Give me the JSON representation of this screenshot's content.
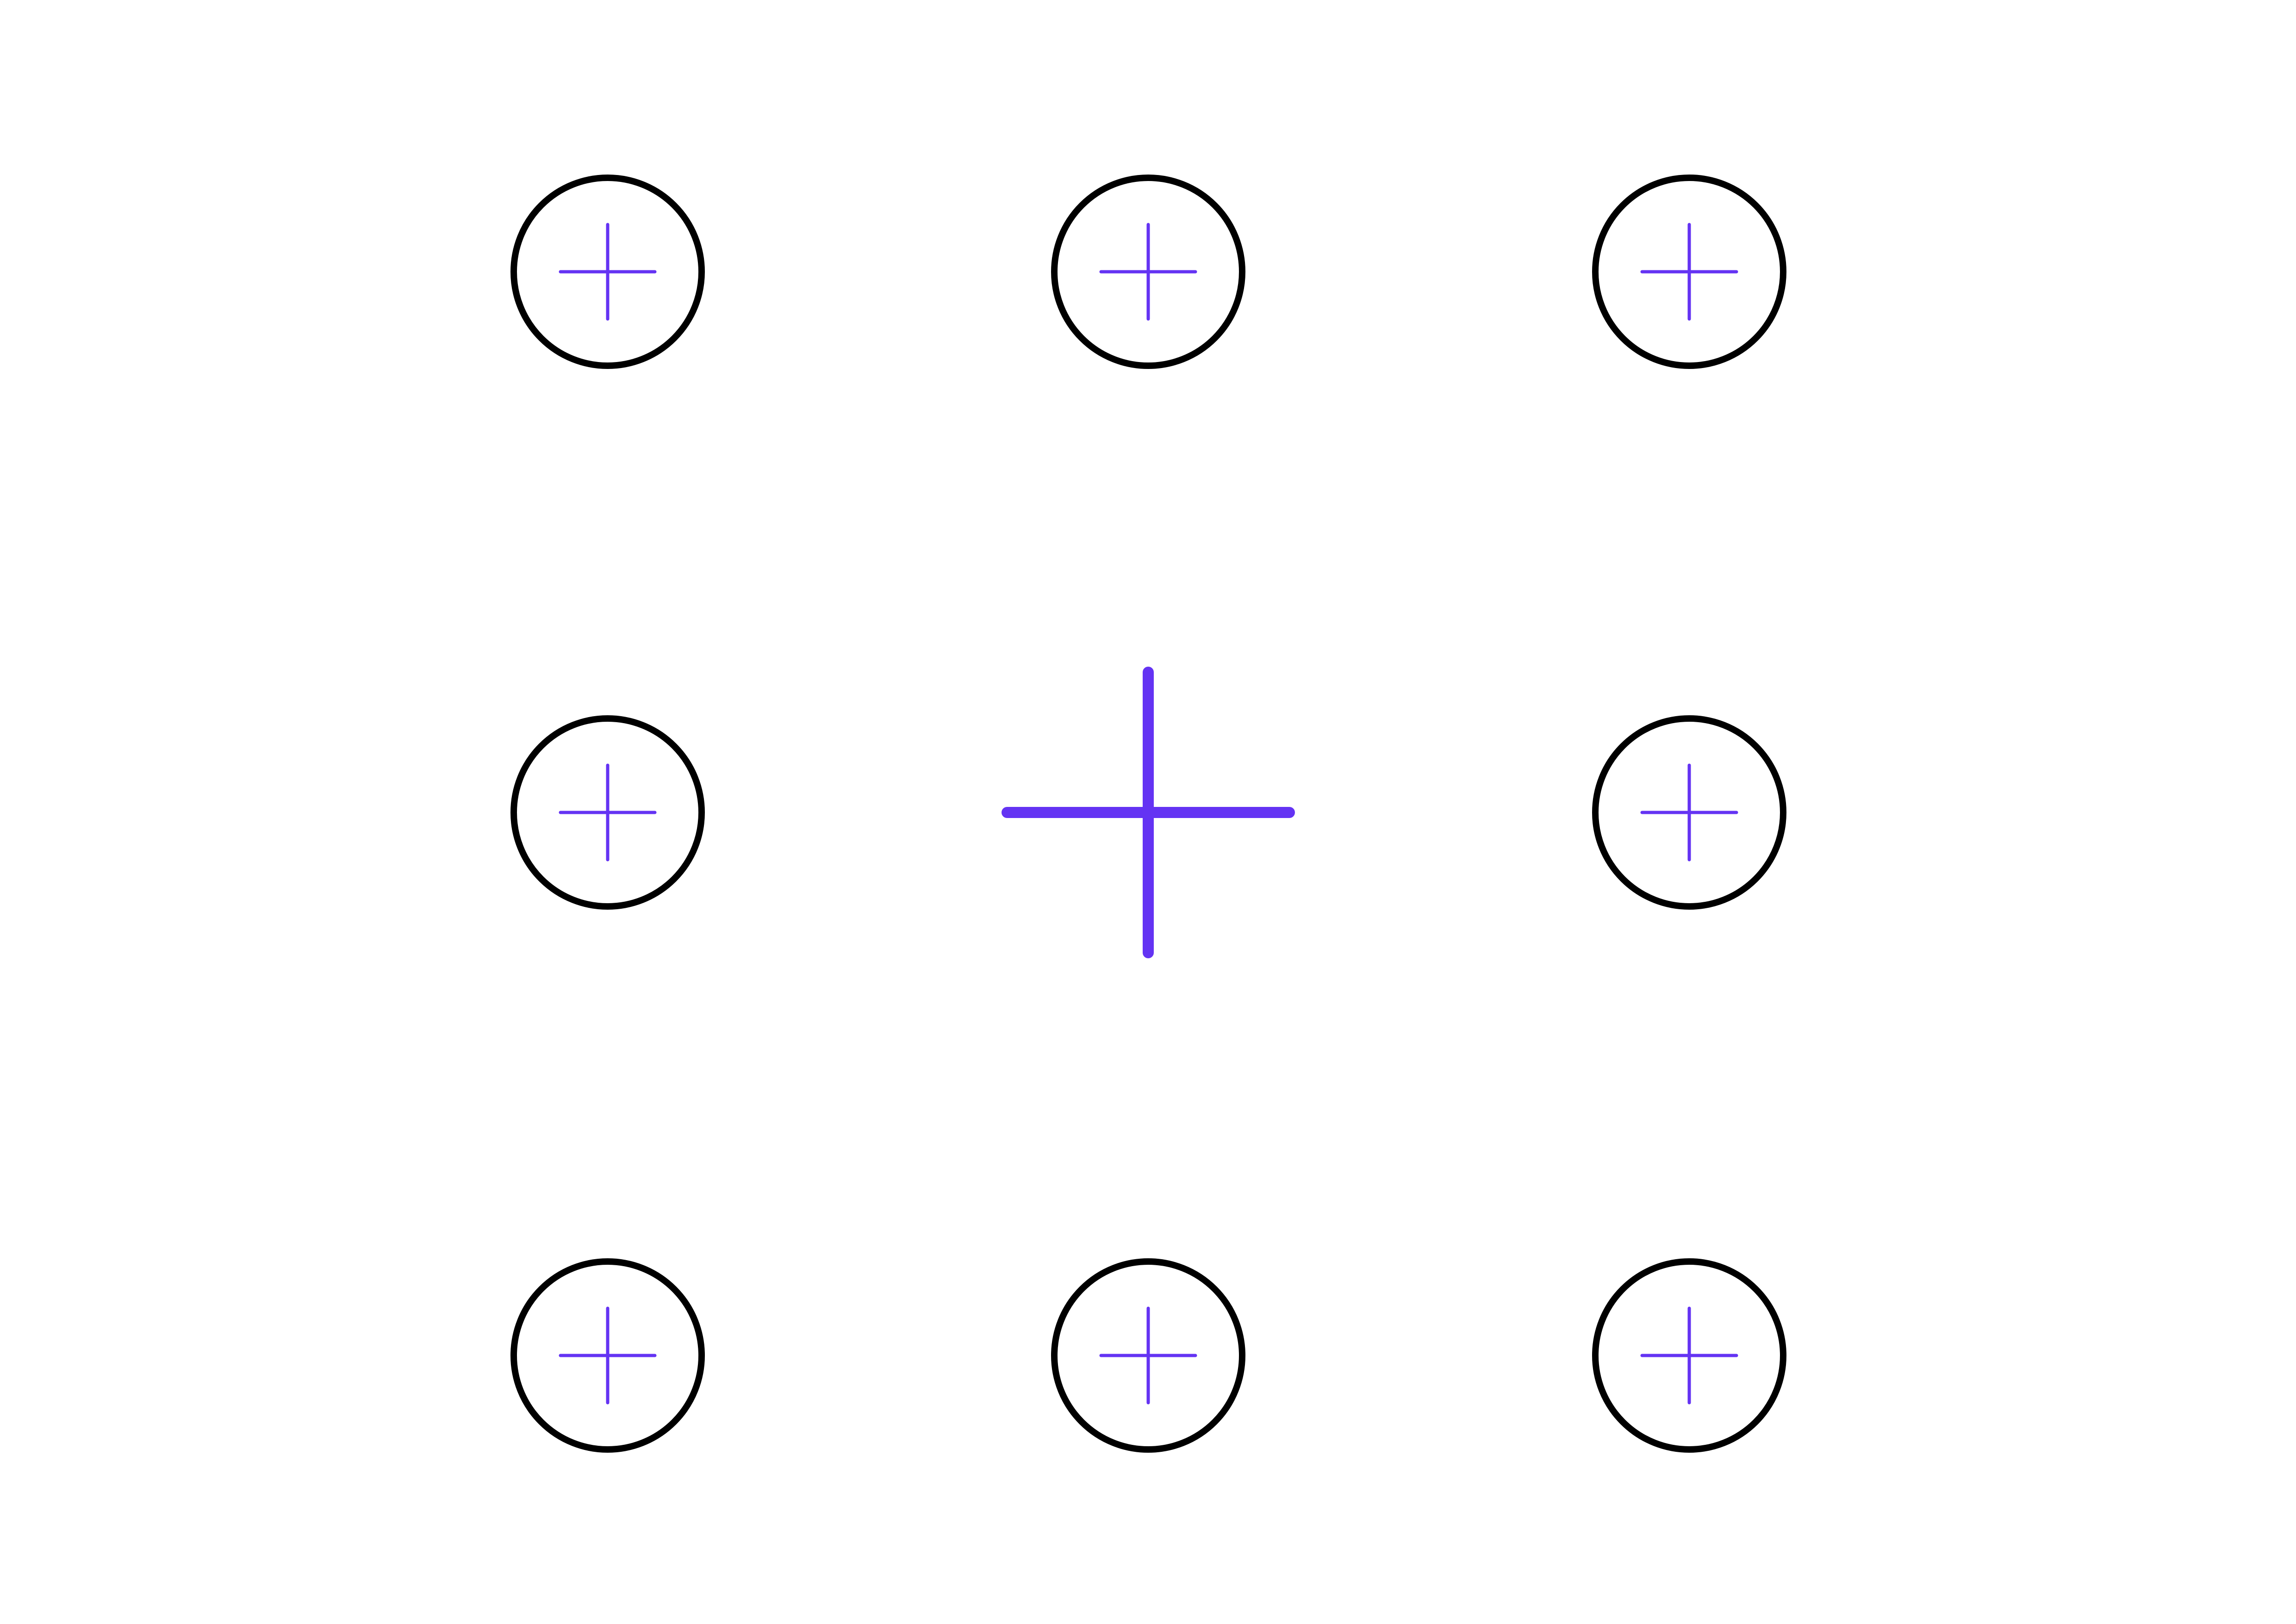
{
  "diagram": {
    "colors": {
      "background": "#ffffff",
      "circle_stroke": "#000000",
      "cross": "#6433f3"
    },
    "center_marker": {
      "icon": "plus-icon"
    },
    "markers": [
      {
        "icon": "circled-plus-icon"
      },
      {
        "icon": "circled-plus-icon"
      },
      {
        "icon": "circled-plus-icon"
      },
      {
        "icon": "circled-plus-icon"
      },
      {
        "icon": "circled-plus-icon"
      },
      {
        "icon": "circled-plus-icon"
      },
      {
        "icon": "circled-plus-icon"
      },
      {
        "icon": "circled-plus-icon"
      }
    ]
  }
}
